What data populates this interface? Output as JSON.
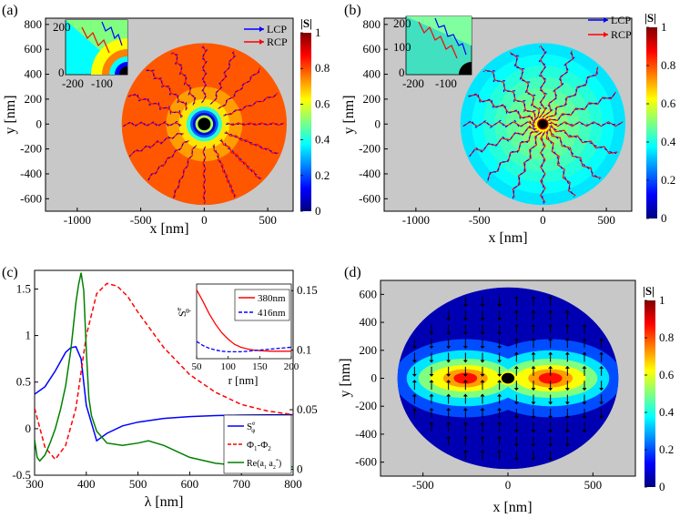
{
  "colormap": {
    "stops": [
      "#00007f",
      "#0000ff",
      "#0080ff",
      "#00ffff",
      "#80ff80",
      "#ffff00",
      "#ff8000",
      "#ff0000",
      "#7f0000"
    ],
    "outside_color": "#c8c8c8"
  },
  "chart_data": [
    {
      "panel": "(a)",
      "type": "heatmap",
      "xlabel": "x [nm]",
      "ylabel": "y [nm]",
      "xlim": [
        -1250,
        700
      ],
      "ylim": [
        -700,
        850
      ],
      "xticks": [
        -1000,
        -500,
        0,
        500
      ],
      "yticks": [
        -600,
        -400,
        -200,
        0,
        200,
        400,
        600,
        800
      ],
      "colorbar_title": "|S|",
      "colorbar_ticks": [
        0,
        0.2,
        0.4,
        0.6,
        0.8,
        1
      ],
      "legend": [
        {
          "label": "LCP",
          "color": "#0000ff"
        },
        {
          "label": "RCP",
          "color": "#ff0000"
        }
      ],
      "radius_nm": 650,
      "rings": [
        {
          "r": 650,
          "value": 0.79
        },
        {
          "r": 300,
          "value": 0.72
        },
        {
          "r": 200,
          "value": 0.65
        },
        {
          "r": 140,
          "value": 0.42
        },
        {
          "r": 110,
          "value": 0.22
        },
        {
          "r": 90,
          "value": 0.08
        },
        {
          "r": 70,
          "value": 0.55
        },
        {
          "r": 50,
          "value": 0.0
        }
      ],
      "spokes": 16,
      "inset": {
        "xticks": [
          -200,
          -100
        ],
        "yticks": [
          0,
          100,
          200
        ]
      }
    },
    {
      "panel": "(b)",
      "type": "heatmap",
      "xlabel": "x [nm]",
      "ylabel": "y [nm]",
      "xlim": [
        -1250,
        700
      ],
      "ylim": [
        -700,
        850
      ],
      "xticks": [
        -1000,
        -500,
        0,
        500
      ],
      "yticks": [
        -600,
        -400,
        -200,
        0,
        200,
        400,
        600,
        800
      ],
      "colorbar_title": "|S|",
      "colorbar_ticks": [
        0,
        0.2,
        0.4,
        0.6,
        0.8,
        1
      ],
      "legend": [
        {
          "label": "LCP",
          "color": "#0000ff"
        },
        {
          "label": "RCP",
          "color": "#ff0000"
        }
      ],
      "radius_nm": 650,
      "rings": [
        {
          "r": 650,
          "value": 0.35
        },
        {
          "r": 560,
          "value": 0.38
        },
        {
          "r": 470,
          "value": 0.41
        },
        {
          "r": 380,
          "value": 0.44
        },
        {
          "r": 290,
          "value": 0.47
        },
        {
          "r": 200,
          "value": 0.5
        },
        {
          "r": 120,
          "value": 0.56
        },
        {
          "r": 70,
          "value": 0.62
        },
        {
          "r": 45,
          "value": 0.95
        },
        {
          "r": 35,
          "value": 0.0
        }
      ],
      "spokes": 16,
      "inset": {
        "xticks": [
          -200,
          -100
        ],
        "yticks": [
          0,
          100,
          200
        ]
      }
    },
    {
      "panel": "(c)",
      "type": "line",
      "xlabel": "λ [nm]",
      "xlim": [
        300,
        800
      ],
      "xticks": [
        300,
        400,
        500,
        600,
        700,
        800
      ],
      "left_ylim": [
        -0.5,
        1.7
      ],
      "left_yticks": [
        -0.5,
        0,
        0.5,
        1,
        1.5
      ],
      "right_ylim": [
        -0.005,
        0.167
      ],
      "right_yticks": [
        0,
        0.05,
        0.1,
        0.15
      ],
      "series": [
        {
          "name": "S_φ^e",
          "axis": "left",
          "color": "#0000ff",
          "dash": "solid",
          "x": [
            300,
            320,
            340,
            360,
            370,
            380,
            390,
            400,
            420,
            440,
            470,
            500,
            550,
            600,
            650,
            700,
            800
          ],
          "y": [
            0.37,
            0.45,
            0.62,
            0.82,
            0.87,
            0.88,
            0.75,
            0.25,
            -0.13,
            -0.05,
            0.03,
            0.07,
            0.11,
            0.13,
            0.14,
            0.145,
            0.15
          ]
        },
        {
          "name": "Φ1-Φ2",
          "axis": "left",
          "color": "#ff0000",
          "dash": "dashed",
          "x": [
            300,
            320,
            340,
            360,
            380,
            400,
            420,
            440,
            460,
            480,
            500,
            550,
            600,
            650,
            700,
            750,
            800
          ],
          "y": [
            0.22,
            -0.2,
            -0.33,
            -0.18,
            0.22,
            1.0,
            1.45,
            1.56,
            1.53,
            1.42,
            1.25,
            0.87,
            0.58,
            0.39,
            0.26,
            0.19,
            0.15
          ]
        },
        {
          "name": "Re(a1 a2*)",
          "axis": "right",
          "color": "#008000",
          "dash": "solid",
          "x": [
            300,
            305,
            310,
            320,
            330,
            340,
            350,
            360,
            370,
            380,
            385,
            390,
            395,
            400,
            405,
            410,
            420,
            440,
            470,
            500,
            520,
            550,
            600,
            650,
            700,
            800
          ],
          "y": [
            0.025,
            0.01,
            0.007,
            0.012,
            0.022,
            0.034,
            0.05,
            0.07,
            0.1,
            0.14,
            0.155,
            0.165,
            0.15,
            0.1,
            0.06,
            0.045,
            0.032,
            0.022,
            0.02,
            0.022,
            0.024,
            0.02,
            0.01,
            0.005,
            0.003,
            0.002
          ]
        }
      ],
      "legend_labels": [
        "S",
        "e",
        "φ",
        "Φ",
        "1",
        "-Φ",
        "2",
        "Re(a",
        "1",
        " a",
        "2",
        "*",
        ")"
      ],
      "inset": {
        "xlabel": "r [nm]",
        "ylabel_main": "S",
        "ylabel_sup": "e",
        "ylabel_sub": "φ",
        "xlim": [
          50,
          200
        ],
        "ylim": [
          -0.3,
          1.0
        ],
        "xticks": [
          50,
          100,
          150,
          200
        ],
        "series": [
          {
            "name": "380nm",
            "color": "#ff0000",
            "dash": "solid",
            "x": [
              50,
              60,
              70,
              80,
              90,
              100,
              110,
              120,
              130,
              140,
              150,
              170,
              200
            ],
            "y": [
              0.9,
              0.7,
              0.48,
              0.3,
              0.15,
              0.04,
              -0.05,
              -0.1,
              -0.13,
              -0.15,
              -0.16,
              -0.17,
              -0.17
            ]
          },
          {
            "name": "416nm",
            "color": "#0000ff",
            "dash": "dashed",
            "x": [
              50,
              60,
              70,
              80,
              90,
              100,
              110,
              120,
              130,
              140,
              150,
              170,
              200
            ],
            "y": [
              0.0,
              -0.07,
              -0.12,
              -0.15,
              -0.17,
              -0.18,
              -0.18,
              -0.18,
              -0.17,
              -0.16,
              -0.15,
              -0.13,
              -0.1
            ]
          }
        ]
      }
    },
    {
      "panel": "(d)",
      "type": "heatmap",
      "xlabel": "x [nm]",
      "ylabel": "y [nm]",
      "xlim": [
        -750,
        750
      ],
      "ylim": [
        -700,
        700
      ],
      "xticks": [
        -500,
        0,
        500
      ],
      "yticks": [
        -600,
        -400,
        -200,
        0,
        200,
        400,
        600
      ],
      "colorbar_title": "|S|",
      "colorbar_ticks": [
        0,
        0.2,
        0.4,
        0.6,
        0.8,
        1
      ],
      "radius_nm": 650,
      "lobes": [
        {
          "cx": 250,
          "rx": 550,
          "ry": 280,
          "value": 0.2
        },
        {
          "cx": 250,
          "rx": 450,
          "ry": 200,
          "value": 0.35
        },
        {
          "cx": 250,
          "rx": 360,
          "ry": 140,
          "value": 0.5
        },
        {
          "cx": 250,
          "rx": 270,
          "ry": 95,
          "value": 0.62
        },
        {
          "cx": 250,
          "rx": 170,
          "ry": 65,
          "value": 0.72
        },
        {
          "cx": 250,
          "rx": 90,
          "ry": 40,
          "value": 0.86
        }
      ],
      "background_value": 0.05,
      "core_value": 0.0
    }
  ]
}
